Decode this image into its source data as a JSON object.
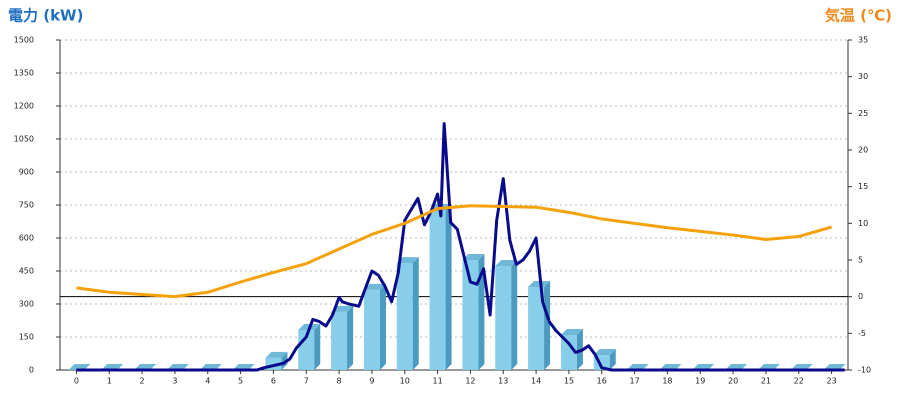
{
  "chart_data": {
    "type": "combo",
    "ylabel": "電力 (kW)",
    "y2label": "気温 (℃)",
    "ylabel_color": "#1f6fc0",
    "y2label_color": "#f08a1c",
    "x": [
      0,
      1,
      2,
      3,
      4,
      5,
      6,
      7,
      8,
      9,
      10,
      11,
      12,
      13,
      14,
      15,
      16,
      17,
      18,
      19,
      20,
      21,
      22,
      23
    ],
    "xlim": [
      -0.5,
      23.5
    ],
    "xticks": [
      0,
      1,
      2,
      3,
      4,
      5,
      6,
      7,
      8,
      9,
      10,
      11,
      12,
      13,
      14,
      15,
      16,
      17,
      18,
      19,
      20,
      21,
      22,
      23
    ],
    "ylim": [
      0,
      1500
    ],
    "yticks": [
      0,
      150,
      300,
      450,
      600,
      750,
      900,
      1050,
      1200,
      1350,
      1500
    ],
    "y2lim": [
      -10,
      35
    ],
    "y2ticks": [
      -10,
      -5,
      0,
      5,
      10,
      15,
      20,
      25,
      30,
      35
    ],
    "grid": true,
    "series": [
      {
        "type": "bar",
        "color": "#87ceeb",
        "values": [
          0,
          0,
          0,
          0,
          0,
          0,
          55,
          182,
          264,
          364,
          486,
          727,
          500,
          473,
          377,
          159,
          68,
          0,
          0,
          0,
          0,
          0,
          0,
          0
        ]
      },
      {
        "type": "line",
        "color": "#0a0a8c",
        "x": [
          0,
          5.5,
          5.7,
          6,
          6.3,
          6.5,
          6.7,
          7,
          7.2,
          7.4,
          7.6,
          7.8,
          8,
          8.1,
          8.3,
          8.6,
          9,
          9.2,
          9.4,
          9.6,
          9.8,
          10,
          10.4,
          10.6,
          10.8,
          11,
          11.1,
          11.2,
          11.4,
          11.6,
          11.8,
          12,
          12.2,
          12.4,
          12.6,
          12.8,
          13,
          13.2,
          13.4,
          13.6,
          13.8,
          14,
          14.2,
          14.4,
          14.6,
          14.8,
          15,
          15.2,
          15.4,
          15.6,
          15.8,
          16,
          16.3,
          23.4
        ],
        "values": [
          0,
          0,
          10,
          20,
          30,
          50,
          100,
          150,
          230,
          220,
          200,
          250,
          330,
          310,
          300,
          290,
          450,
          430,
          380,
          310,
          440,
          680,
          780,
          660,
          720,
          800,
          700,
          1120,
          670,
          640,
          520,
          400,
          390,
          460,
          250,
          680,
          870,
          590,
          480,
          500,
          540,
          600,
          310,
          220,
          180,
          150,
          120,
          80,
          90,
          110,
          70,
          10,
          0,
          0
        ]
      },
      {
        "type": "line",
        "axis": "y2",
        "color": "#f5a20a",
        "values": [
          1.2,
          0.6,
          0.3,
          0,
          0.6,
          2,
          3.3,
          4.5,
          6.5,
          8.5,
          10,
          12,
          12.4,
          12.3,
          12.2,
          11.5,
          10.6,
          10,
          9.4,
          8.9,
          8.4,
          7.8,
          8.2,
          9.5
        ]
      }
    ]
  }
}
